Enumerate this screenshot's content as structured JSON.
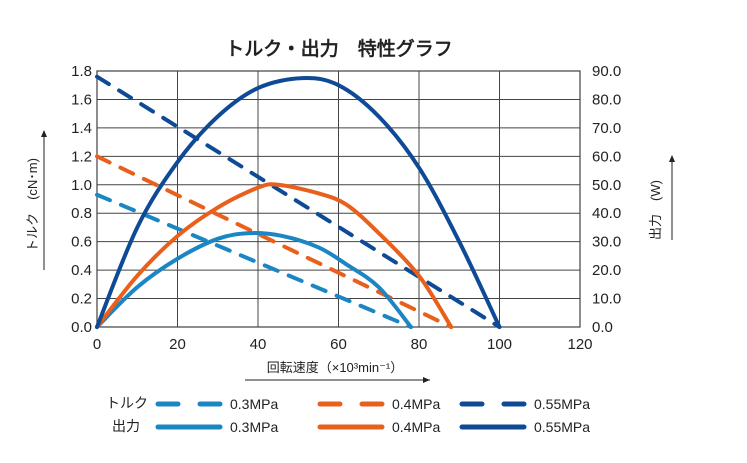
{
  "chart_data": {
    "type": "line",
    "title": "トルク・出力　特性グラフ",
    "xlabel": "回転速度（×10³min⁻¹）",
    "ylabel_left": "トルク　(cN･m)",
    "ylabel_right": "出力　(W)",
    "xlim": [
      0,
      120
    ],
    "ylim_left": [
      0,
      1.8
    ],
    "ylim_right": [
      0,
      90
    ],
    "x_ticks": [
      "0",
      "20",
      "40",
      "60",
      "80",
      "100",
      "120"
    ],
    "y_ticks_left": [
      "0.0",
      "0.2",
      "0.4",
      "0.6",
      "0.8",
      "1.0",
      "1.2",
      "1.4",
      "1.6",
      "1.8"
    ],
    "y_ticks_right": [
      "0.0",
      "10.0",
      "20.0",
      "30.0",
      "40.0",
      "50.0",
      "60.0",
      "70.0",
      "80.0",
      "90.0"
    ],
    "grid": true,
    "legend_position": "bottom",
    "legend_row_labels": {
      "torque": "トルク",
      "power": "出力"
    },
    "series": [
      {
        "name": "0.3MPa",
        "kind": "torque",
        "axis": "left",
        "style": "dashed",
        "color": "#1a86c4",
        "points": [
          [
            0,
            0.93
          ],
          [
            78,
            0
          ]
        ]
      },
      {
        "name": "0.4MPa",
        "kind": "torque",
        "axis": "left",
        "style": "dashed",
        "color": "#e8601c",
        "points": [
          [
            0,
            1.2
          ],
          [
            88,
            0
          ]
        ]
      },
      {
        "name": "0.55MPa",
        "kind": "torque",
        "axis": "left",
        "style": "dashed",
        "color": "#0f4a96",
        "points": [
          [
            0,
            1.76
          ],
          [
            100,
            0
          ]
        ]
      },
      {
        "name": "0.3MPa",
        "kind": "power",
        "axis": "right",
        "style": "solid",
        "color": "#1a86c4",
        "points": [
          [
            0,
            0
          ],
          [
            10,
            14
          ],
          [
            20,
            24
          ],
          [
            30,
            31
          ],
          [
            38,
            33
          ],
          [
            46,
            32
          ],
          [
            55,
            28
          ],
          [
            62,
            22
          ],
          [
            70,
            14
          ],
          [
            78,
            0
          ]
        ]
      },
      {
        "name": "0.4MPa",
        "kind": "power",
        "axis": "right",
        "style": "solid",
        "color": "#e8601c",
        "points": [
          [
            0,
            0
          ],
          [
            10,
            18
          ],
          [
            20,
            32
          ],
          [
            30,
            42
          ],
          [
            40,
            49
          ],
          [
            45,
            50
          ],
          [
            55,
            47
          ],
          [
            62,
            43
          ],
          [
            70,
            33
          ],
          [
            80,
            18
          ],
          [
            88,
            0
          ]
        ]
      },
      {
        "name": "0.55MPa",
        "kind": "power",
        "axis": "right",
        "style": "solid",
        "color": "#0f4a96",
        "points": [
          [
            0,
            0
          ],
          [
            10,
            35
          ],
          [
            20,
            58
          ],
          [
            30,
            74
          ],
          [
            40,
            84
          ],
          [
            51,
            87.5
          ],
          [
            60,
            85
          ],
          [
            70,
            74
          ],
          [
            80,
            56
          ],
          [
            90,
            30
          ],
          [
            100,
            0
          ]
        ]
      }
    ]
  }
}
